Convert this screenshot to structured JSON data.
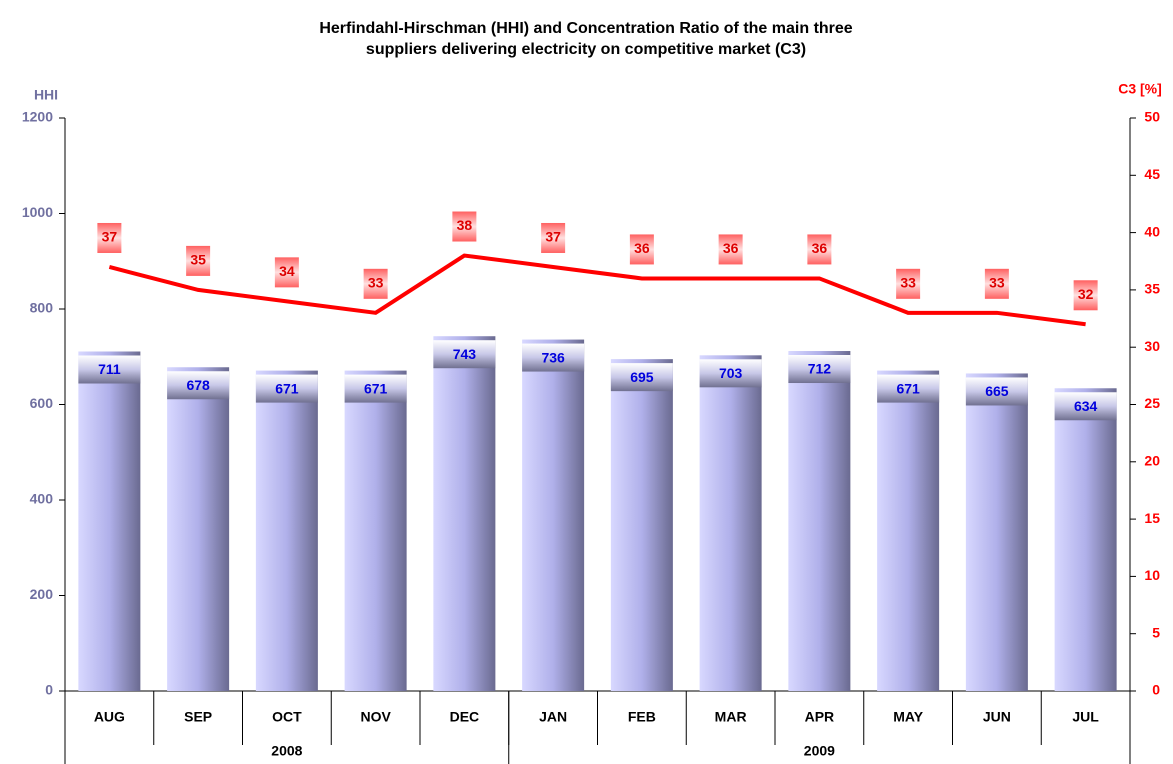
{
  "chart_data": {
    "type": "bar",
    "title": "Herfindahl-Hirschman (HHI) and Concentration Ratio of the main three suppliers delivering electricity on competitive market (C3)",
    "ylabel": "HHI",
    "y2label": "C3 [%]",
    "categories": [
      "AUG",
      "SEP",
      "OCT",
      "NOV",
      "DEC",
      "JAN",
      "FEB",
      "MAR",
      "APR",
      "MAY",
      "JUN",
      "JUL"
    ],
    "groups": [
      {
        "label": "2008",
        "count": 5
      },
      {
        "label": "2009",
        "count": 7
      }
    ],
    "series": [
      {
        "type": "bar",
        "color": "#b8b8f0",
        "values": [
          711,
          678,
          671,
          671,
          743,
          736,
          695,
          703,
          712,
          671,
          665,
          634
        ]
      },
      {
        "type": "line",
        "axis": "y2",
        "color": "#ff0000",
        "values": [
          37,
          35,
          34,
          33,
          38,
          37,
          36,
          36,
          36,
          33,
          33,
          32
        ]
      }
    ],
    "ylim": [
      0,
      1200
    ],
    "yticks": [
      0,
      200,
      400,
      600,
      800,
      1000,
      1200
    ],
    "y2lim": [
      0,
      50
    ],
    "y2ticks": [
      0,
      5,
      10,
      15,
      20,
      25,
      30,
      35,
      40,
      45,
      50
    ]
  }
}
